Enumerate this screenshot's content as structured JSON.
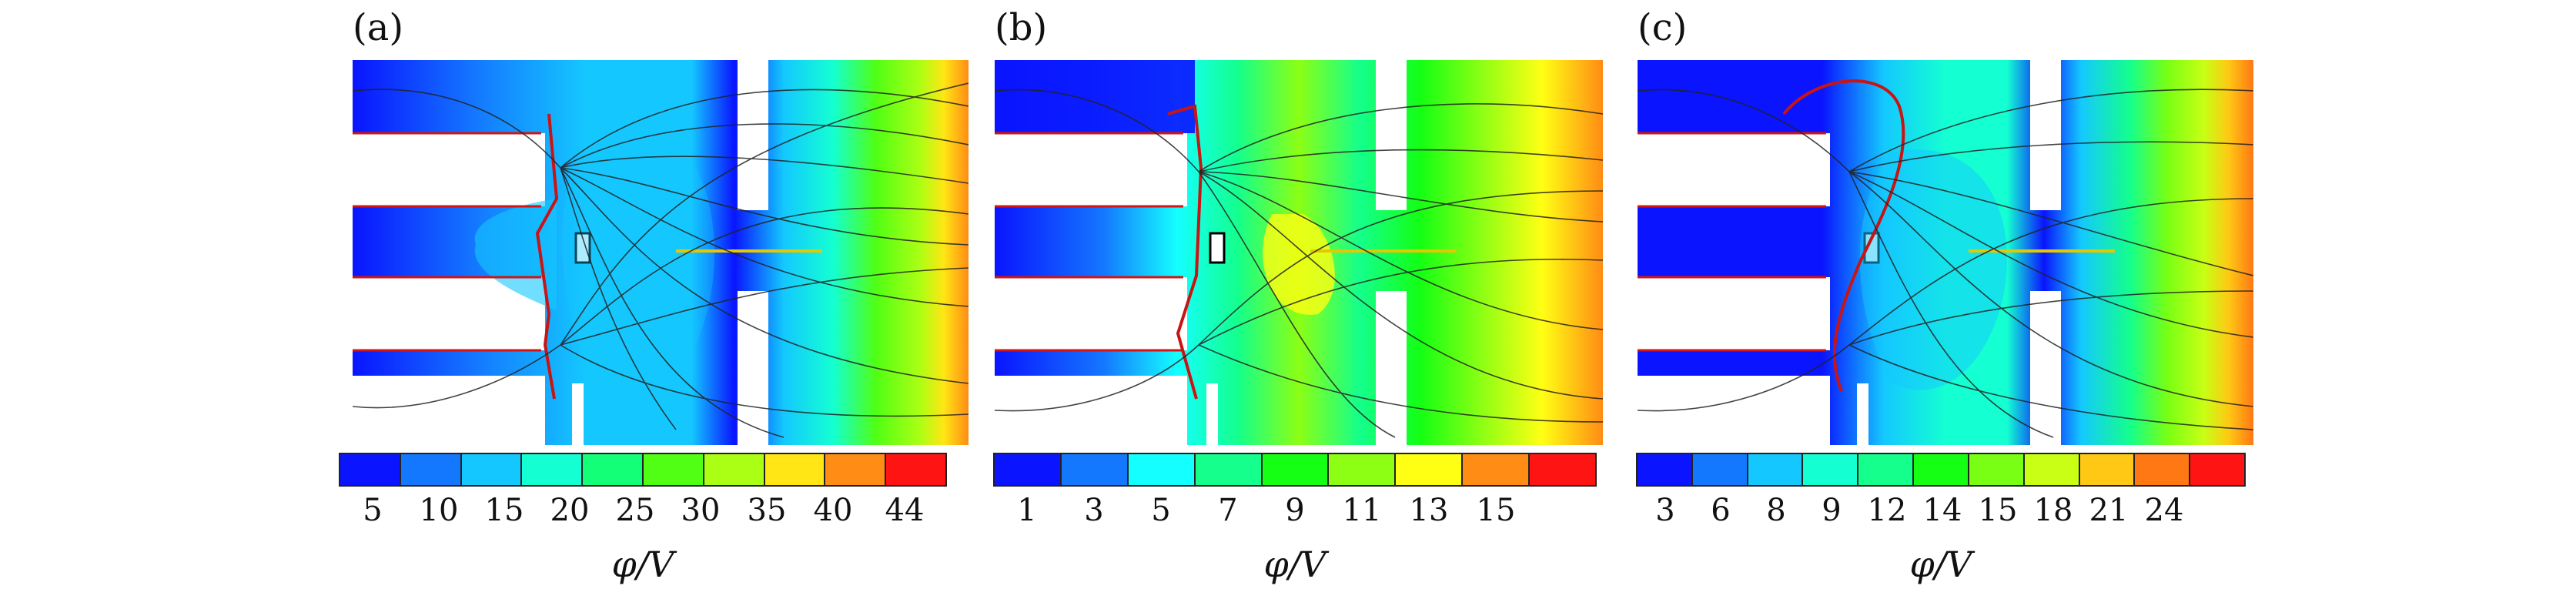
{
  "panels": [
    {
      "label": "(a)",
      "colorbar": {
        "colors": [
          "#0a14ff",
          "#1478ff",
          "#14c8ff",
          "#14ffd2",
          "#14ff78",
          "#50ff14",
          "#aaff14",
          "#ffe614",
          "#ff8c14",
          "#ff1414"
        ],
        "ticks": [
          "5",
          "10",
          "15",
          "20",
          "25",
          "30",
          "35",
          "40",
          "44"
        ]
      },
      "unit": "φ/V"
    },
    {
      "label": "(b)",
      "colorbar": {
        "colors": [
          "#0a14ff",
          "#1478ff",
          "#14ffff",
          "#14ff8c",
          "#14ff14",
          "#8cff14",
          "#ffff14",
          "#ff8c14",
          "#ff1414"
        ],
        "ticks": [
          "1",
          "3",
          "5",
          "7",
          "9",
          "11",
          "13",
          "15"
        ]
      },
      "unit": "φ/V"
    },
    {
      "label": "(c)",
      "colorbar": {
        "colors": [
          "#0a14ff",
          "#1478ff",
          "#14c8ff",
          "#14ffd2",
          "#14ff8c",
          "#14ff14",
          "#78ff14",
          "#c8ff14",
          "#ffc814",
          "#ff7814",
          "#ff1414"
        ],
        "ticks": [
          "3",
          "6",
          "8",
          "9",
          "12",
          "14",
          "15",
          "18",
          "21",
          "24"
        ]
      },
      "unit": "φ/V"
    }
  ]
}
